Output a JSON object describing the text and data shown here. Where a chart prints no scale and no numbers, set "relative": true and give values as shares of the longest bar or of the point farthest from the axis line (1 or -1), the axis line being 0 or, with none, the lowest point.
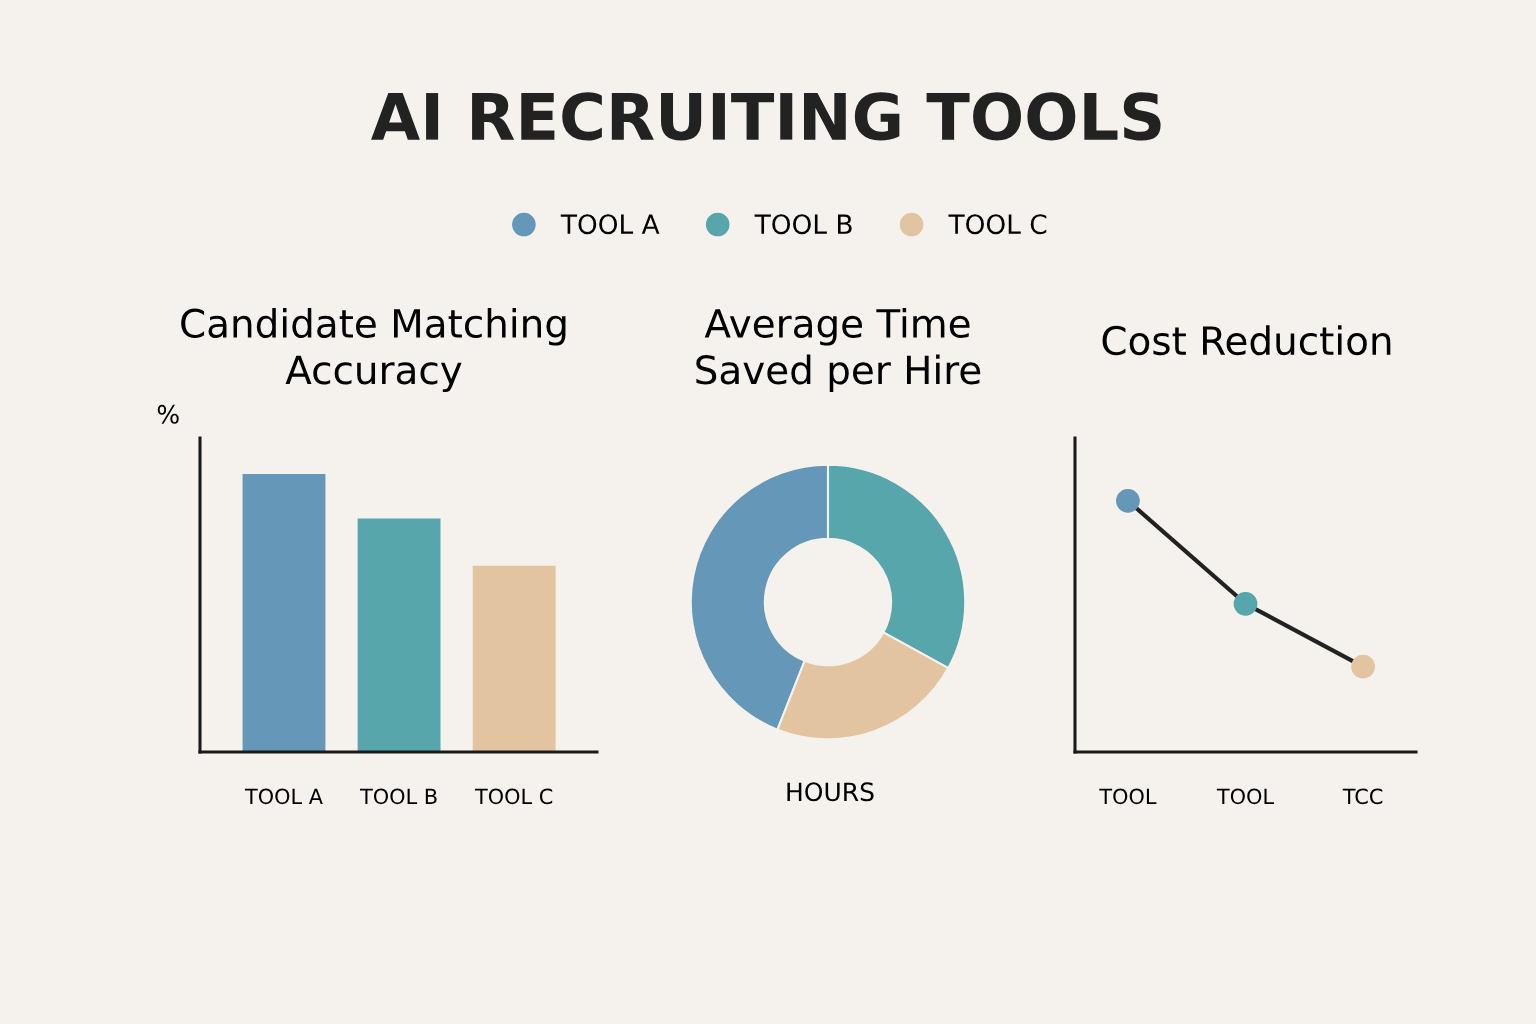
{
  "chart_data": [
    {
      "type": "other",
      "title": "AI RECRUITING TOOLS"
    },
    {
      "type": "bar",
      "title": "Candidate Matching\nAccuracy",
      "ylabel": "%",
      "relative": true,
      "categories": [
        "TOOL A",
        "TOOL B",
        "TOOL C"
      ],
      "values": [
        1,
        0.84,
        0.67
      ],
      "colors": [
        "#6497b8",
        "#56a6ab",
        "#e2c4a0"
      ],
      "grid": false
    },
    {
      "type": "donut",
      "title": "Average Time\nSaved per Hire",
      "xlabel": "HOURS",
      "categories": [
        "TOOL A",
        "TOOL B",
        "TOOL C"
      ],
      "values": [
        44,
        33,
        23
      ],
      "colors": [
        "#6497b8",
        "#56a6ab",
        "#e2c4a0"
      ],
      "legend": "top"
    },
    {
      "type": "line",
      "title": "Cost Reduction",
      "relative": true,
      "categories": [
        "TOOL",
        "TOOL",
        "TCC"
      ],
      "series": [
        {
          "color": "#222222",
          "values": [
            1,
            0.59,
            0.34
          ],
          "colors": [
            "#6497b8",
            "#56a6ab",
            "#e2c4a0"
          ]
        }
      ],
      "marker": "circle",
      "line_style": "solid",
      "grid": false
    }
  ]
}
